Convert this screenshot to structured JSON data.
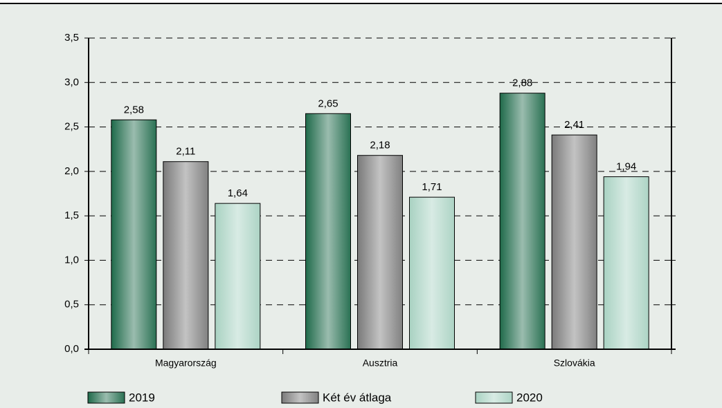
{
  "chart_data": {
    "type": "bar",
    "categories": [
      "Magyarország",
      "Ausztria",
      "Szlovákia"
    ],
    "series": [
      {
        "name": "2019",
        "color": "#1f6a4a",
        "values": [
          2.58,
          2.65,
          2.88
        ],
        "value_labels": [
          "2,58",
          "2,65",
          "2,88"
        ]
      },
      {
        "name": "Két év átlaga",
        "color": "#7a7a7a",
        "values": [
          2.11,
          2.18,
          2.41
        ],
        "value_labels": [
          "2,11",
          "2,18",
          "2,41"
        ]
      },
      {
        "name": "2020",
        "color": "#a9d2c2",
        "values": [
          1.64,
          1.71,
          1.94
        ],
        "value_labels": [
          "1,64",
          "1,71",
          "1,94"
        ]
      }
    ],
    "ylim": [
      0,
      3.5
    ],
    "yticks": [
      {
        "value": 0,
        "label": "0,0"
      },
      {
        "value": 0.5,
        "label": "0,5"
      },
      {
        "value": 1,
        "label": "1,0"
      },
      {
        "value": 1.5,
        "label": "1,5"
      },
      {
        "value": 2,
        "label": "2,0"
      },
      {
        "value": 2.5,
        "label": "2,5"
      },
      {
        "value": 3,
        "label": "3,0"
      },
      {
        "value": 3.5,
        "label": "3,5"
      }
    ],
    "grid": true,
    "legend": "bottom"
  }
}
